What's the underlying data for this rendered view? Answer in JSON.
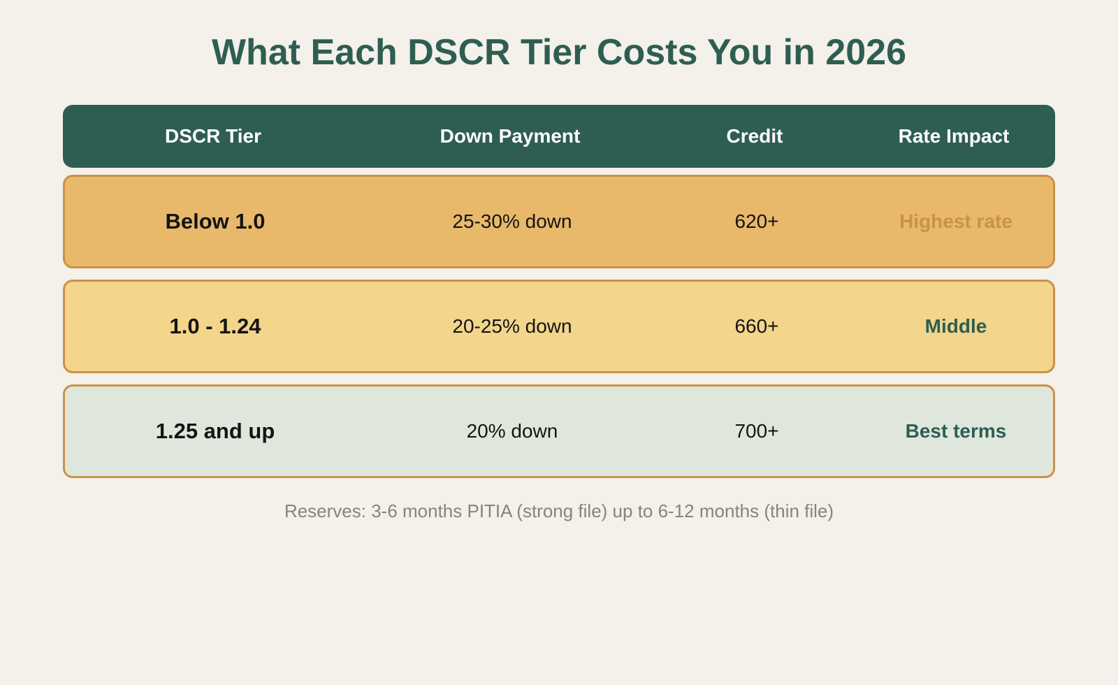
{
  "title": "What Each DSCR Tier Costs You in 2026",
  "headers": [
    "DSCR Tier",
    "Down Payment",
    "Credit",
    "Rate Impact"
  ],
  "rows": [
    {
      "tier": "Below 1.0",
      "down_payment": "25-30% down",
      "credit": "620+",
      "rate_impact": "Highest rate",
      "row_color": "#e8b86b",
      "impact_color": "#c9914a"
    },
    {
      "tier": "1.0 - 1.24",
      "down_payment": "20-25% down",
      "credit": "660+",
      "rate_impact": "Middle",
      "row_color": "#f3d58b",
      "impact_color": "#2e5e52"
    },
    {
      "tier": "1.25 and up",
      "down_payment": "20% down",
      "credit": "700+",
      "rate_impact": "Best terms",
      "row_color": "#dfe7dd",
      "impact_color": "#2e5e52"
    }
  ],
  "footnote": "Reserves: 3-6 months PITIA (strong file) up to 6-12 months (thin file)",
  "colors": {
    "background": "#f4f0ea",
    "primary": "#2e5e52",
    "row_border": "#c9914a"
  }
}
